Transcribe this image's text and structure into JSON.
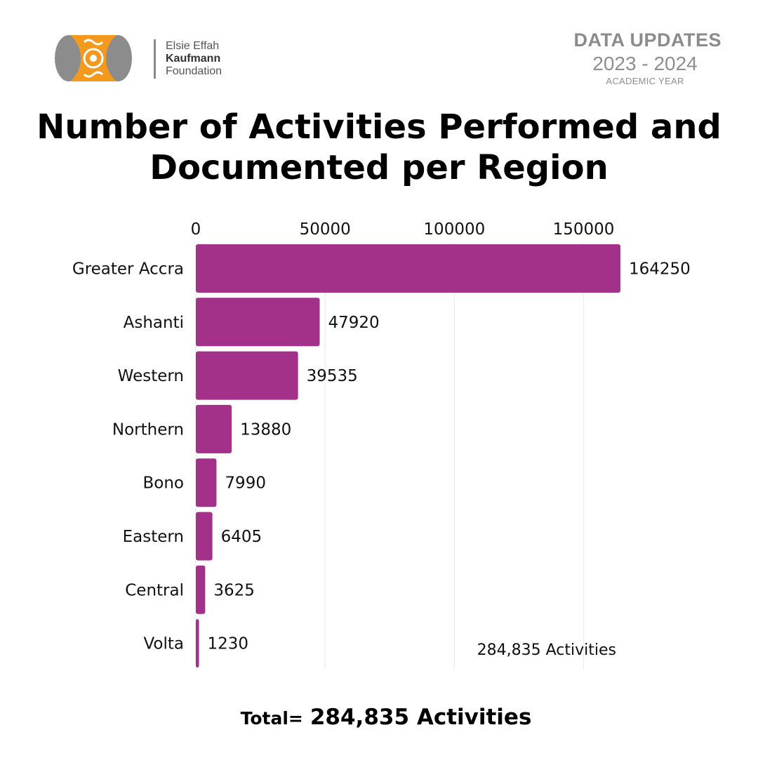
{
  "logo": {
    "line1": "Elsie Effah",
    "line2": "Kaufmann",
    "line3": "Foundation",
    "colors": {
      "orange": "#f39a1e",
      "gray": "#8c8c8c"
    }
  },
  "updates": {
    "heading": "DATA UPDATES",
    "years": "2023 - 2024",
    "subtitle": "ACADEMIC YEAR"
  },
  "title_line1": "Number of Activities Performed and",
  "title_line2": "Documented per Region",
  "chart_data": {
    "type": "bar",
    "orientation": "horizontal",
    "title": "Number of Activities Performed and Documented per Region",
    "categories": [
      "Greater Accra",
      "Ashanti",
      "Western",
      "Northern",
      "Bono",
      "Eastern",
      "Central",
      "Volta"
    ],
    "values": [
      164250,
      47920,
      39535,
      13880,
      7990,
      6405,
      3625,
      1230
    ],
    "value_labels": [
      "164250",
      "47920",
      "39535",
      "13880",
      "7990",
      "6405",
      "3625",
      "1230"
    ],
    "xticks": [
      0,
      50000,
      100000,
      150000
    ],
    "xtick_labels": [
      "0",
      "50000",
      "100000",
      "150000"
    ],
    "xlim": [
      0,
      164250
    ],
    "xaxis_position": "top",
    "grid": true,
    "annotation": "284,835 Activities",
    "bar_color": "#a3318a",
    "grid_color": "#ececec"
  },
  "total": {
    "label": "Total=",
    "value": "284,835 Activities"
  }
}
